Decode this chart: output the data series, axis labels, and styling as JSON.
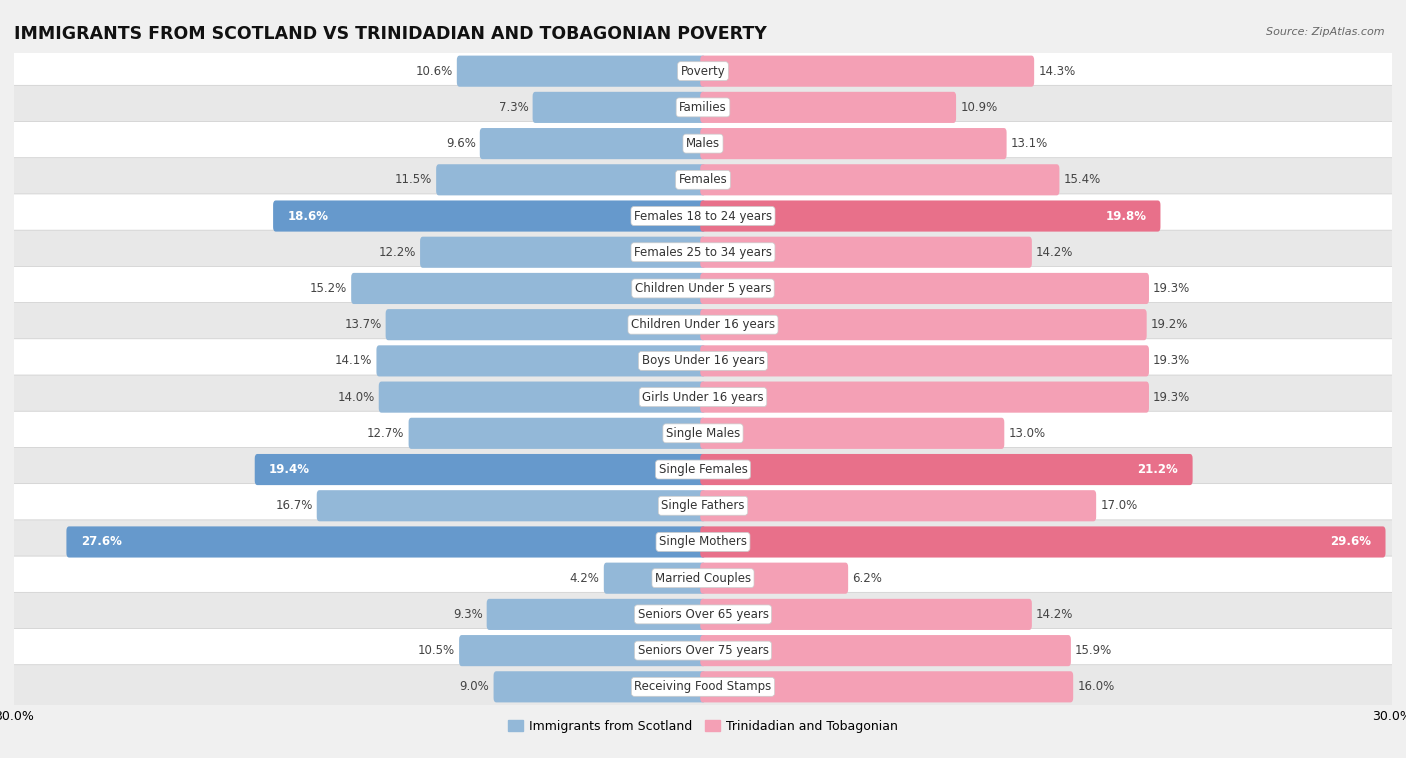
{
  "title": "IMMIGRANTS FROM SCOTLAND VS TRINIDADIAN AND TOBAGONIAN POVERTY",
  "source": "Source: ZipAtlas.com",
  "categories": [
    "Poverty",
    "Families",
    "Males",
    "Females",
    "Females 18 to 24 years",
    "Females 25 to 34 years",
    "Children Under 5 years",
    "Children Under 16 years",
    "Boys Under 16 years",
    "Girls Under 16 years",
    "Single Males",
    "Single Females",
    "Single Fathers",
    "Single Mothers",
    "Married Couples",
    "Seniors Over 65 years",
    "Seniors Over 75 years",
    "Receiving Food Stamps"
  ],
  "scotland_values": [
    10.6,
    7.3,
    9.6,
    11.5,
    18.6,
    12.2,
    15.2,
    13.7,
    14.1,
    14.0,
    12.7,
    19.4,
    16.7,
    27.6,
    4.2,
    9.3,
    10.5,
    9.0
  ],
  "trinidad_values": [
    14.3,
    10.9,
    13.1,
    15.4,
    19.8,
    14.2,
    19.3,
    19.2,
    19.3,
    19.3,
    13.0,
    21.2,
    17.0,
    29.6,
    6.2,
    14.2,
    15.9,
    16.0
  ],
  "scotland_color": "#93b8d8",
  "trinidad_color": "#f4a0b5",
  "scotland_highlight_color": "#6699cc",
  "trinidad_highlight_color": "#e8708a",
  "axis_limit": 30.0,
  "background_color": "#f0f0f0",
  "row_white_color": "#ffffff",
  "row_gray_color": "#e8e8e8",
  "row_border_color": "#cccccc",
  "legend_scotland": "Immigrants from Scotland",
  "legend_trinidad": "Trinidadian and Tobagonian",
  "highlight_rows": [
    4,
    11,
    13
  ],
  "title_fontsize": 12.5,
  "label_fontsize": 8.5,
  "value_fontsize": 8.5,
  "tick_fontsize": 9
}
